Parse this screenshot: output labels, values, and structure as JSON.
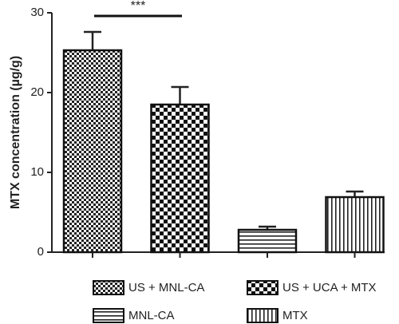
{
  "chart_data": {
    "type": "bar",
    "y_label": "MTX concentration (µg/g)",
    "annotation": "***",
    "categories": [
      "US + MNL-CA",
      "US + UCA + MTX",
      "MNL-CA",
      "MTX"
    ],
    "values": [
      25.3,
      18.5,
      2.8,
      6.9
    ],
    "errors": [
      2.3,
      2.2,
      0.4,
      0.7
    ],
    "patterns": [
      "checker-fine",
      "checker-coarse",
      "horizontal-lines",
      "vertical-lines"
    ],
    "ylim": [
      0,
      30
    ],
    "yticks": [
      0,
      10,
      20,
      30
    ]
  }
}
